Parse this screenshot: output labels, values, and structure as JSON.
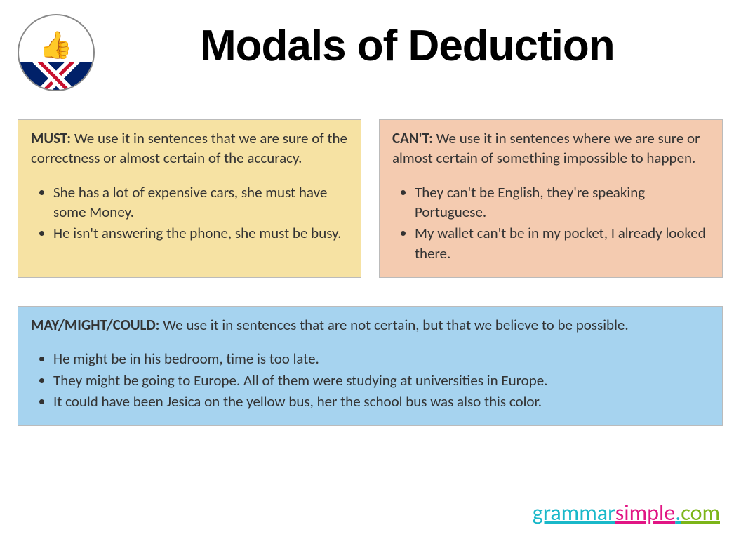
{
  "title": "Modals of Deduction",
  "logo": {
    "brand_top": "GrammarSimple",
    "brand_ext": ".Com",
    "thumb_glyph": "👍"
  },
  "boxes": {
    "must": {
      "label": "MUST:",
      "desc": " We use it in sentences that we are sure of the correctness or almost certain of the accuracy.",
      "items": [
        "She has a lot of expensive cars, she must have some Money.",
        "He isn't answering the phone, she must be busy."
      ],
      "bg": "#f6e2a3"
    },
    "cant": {
      "label": "CAN'T:",
      "desc": " We use it in sentences where we are sure or almost certain of something impossible to happen.",
      "items": [
        "They can't be English, they're speaking Portuguese.",
        "My wallet can't be in my pocket, I already looked there."
      ],
      "bg": "#f4cbb0"
    },
    "may": {
      "label": "MAY/MIGHT/COULD:",
      "desc": " We use it in sentences that are not certain, but that we believe to be possible.",
      "items": [
        "He might be in his bedroom, time is too late.",
        "They might be going to Europe. All of them were studying at universities in Europe.",
        "It could have been Jesica on the yellow bus, her the school bus was also this color."
      ],
      "bg": "#a6d3ef"
    }
  },
  "footer": {
    "grammar": "grammar",
    "simple": "simple",
    "dot": ".",
    "com": "com"
  },
  "colors": {
    "title": "#000000",
    "text": "#333333",
    "border": "#bbbbbb",
    "footer_teal": "#19b8c9",
    "footer_pink": "#e11584",
    "footer_green": "#7cb518"
  }
}
